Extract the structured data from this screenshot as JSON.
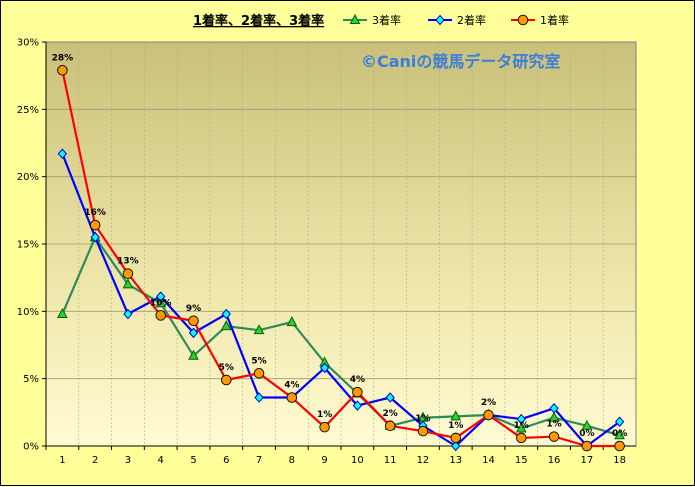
{
  "chart_data": {
    "type": "line",
    "title": "1着率、2着率、3着率",
    "watermark": "©Caniの競馬データ研究室",
    "categories": [
      "1",
      "2",
      "3",
      "4",
      "5",
      "6",
      "7",
      "8",
      "9",
      "10",
      "11",
      "12",
      "13",
      "14",
      "15",
      "16",
      "17",
      "18"
    ],
    "ylim": [
      0,
      30
    ],
    "yticks": [
      "0%",
      "5%",
      "10%",
      "15%",
      "20%",
      "25%",
      "30%"
    ],
    "grid": true,
    "legend": "top",
    "series": [
      {
        "name": "3着率",
        "color": "#2e8b57",
        "marker": "triangle",
        "marker_fill": "#33cc33",
        "values": [
          9.8,
          15.5,
          12.0,
          10.6,
          6.7,
          8.9,
          8.6,
          9.2,
          6.2,
          3.9,
          1.5,
          2.1,
          2.2,
          2.3,
          1.3,
          2.1,
          1.5,
          0.8
        ]
      },
      {
        "name": "2着率",
        "color": "#0000ff",
        "marker": "diamond",
        "marker_fill": "#00ffff",
        "values": [
          21.7,
          15.5,
          9.8,
          11.1,
          8.4,
          9.8,
          3.6,
          3.6,
          5.8,
          3.0,
          3.6,
          1.5,
          0.0,
          2.3,
          2.0,
          2.8,
          0.0,
          1.8
        ]
      },
      {
        "name": "1着率",
        "color": "#ff0000",
        "marker": "circle",
        "marker_fill": "#ff9900",
        "values": [
          27.9,
          16.4,
          12.8,
          9.7,
          9.3,
          4.9,
          5.4,
          3.6,
          1.4,
          4.0,
          1.5,
          1.1,
          0.6,
          2.3,
          0.6,
          0.7,
          0.0,
          0.0
        ],
        "labels": [
          "28%",
          "16%",
          "13%",
          "10%",
          "9%",
          "5%",
          "5%",
          "4%",
          "1%",
          "4%",
          "2%",
          "1%",
          "1%",
          "2%",
          "1%",
          "1%",
          "0%",
          "0%"
        ]
      }
    ]
  }
}
